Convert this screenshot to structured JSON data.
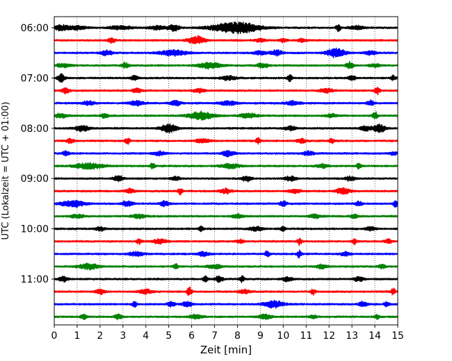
{
  "chart_data": {
    "type": "line",
    "title": "",
    "xlabel": "Zeit  [min]",
    "ylabel": "UTC (Lokalzeit = UTC + 01:00)",
    "xlim": [
      0,
      15
    ],
    "x_ticks": [
      0,
      1,
      2,
      3,
      4,
      5,
      6,
      7,
      8,
      9,
      10,
      11,
      12,
      13,
      14,
      15
    ],
    "x_tick_labels": [
      "0",
      "1",
      "2",
      "3",
      "4",
      "5",
      "6",
      "7",
      "8",
      "9",
      "10",
      "11",
      "12",
      "13",
      "14",
      "15"
    ],
    "y_tick_labels": [
      "06:00",
      "07:00",
      "08:00",
      "09:00",
      "10:00",
      "11:00"
    ],
    "grid": "vertical dotted at each minute",
    "trace_colors": [
      "#000000",
      "#ff0000",
      "#0000ff",
      "#008000"
    ],
    "traces": [
      {
        "time": "06:00",
        "events": [
          [
            0.3,
            0.6,
            1.2
          ],
          [
            1.0,
            0.8,
            0.8
          ],
          [
            2.9,
            1.0,
            0.8
          ],
          [
            4.5,
            0.6,
            1
          ],
          [
            5.2,
            0.5,
            1.4
          ],
          [
            7.5,
            1.6,
            1.4
          ],
          [
            8.3,
            1.5,
            1.7
          ],
          [
            12.4,
            0.2,
            1.6
          ],
          [
            13.2,
            0.6,
            1
          ]
        ]
      },
      {
        "time": "06:15",
        "events": [
          [
            2.5,
            0.3,
            1.1
          ],
          [
            6.2,
            0.7,
            1.8
          ],
          [
            9.0,
            0.4,
            0.8
          ],
          [
            10.0,
            0.3,
            0.8
          ],
          [
            10.8,
            0.4,
            0.7
          ]
        ]
      },
      {
        "time": "06:30",
        "events": [
          [
            2.3,
            0.5,
            1.2
          ],
          [
            5.2,
            1.2,
            1.2
          ],
          [
            9.0,
            0.6,
            0.8
          ],
          [
            9.7,
            0.5,
            1.3
          ],
          [
            12.3,
            0.8,
            2
          ],
          [
            13.8,
            0.5,
            0.8
          ]
        ]
      },
      {
        "time": "06:45",
        "events": [
          [
            0.4,
            0.6,
            0.8
          ],
          [
            3.1,
            0.3,
            1.2
          ],
          [
            6.8,
            1.0,
            1.3
          ],
          [
            9.1,
            0.5,
            0.9
          ],
          [
            12.9,
            0.3,
            1.7
          ],
          [
            14.0,
            0.4,
            0.8
          ]
        ]
      },
      {
        "time": "07:00",
        "events": [
          [
            0.3,
            0.3,
            1.8
          ],
          [
            3.5,
            0.3,
            1
          ],
          [
            7.6,
            0.6,
            1
          ],
          [
            10.3,
            0.2,
            1.6
          ],
          [
            13.0,
            0.3,
            1.2
          ],
          [
            14.8,
            0.2,
            1.1
          ]
        ]
      },
      {
        "time": "07:15",
        "events": [
          [
            0.5,
            0.3,
            1.2
          ],
          [
            3.6,
            0.4,
            1
          ],
          [
            6.3,
            0.5,
            0.9
          ],
          [
            11.9,
            0.6,
            0.9
          ],
          [
            14.1,
            0.2,
            1.8
          ]
        ]
      },
      {
        "time": "07:30",
        "events": [
          [
            1.5,
            0.5,
            0.9
          ],
          [
            3.6,
            0.6,
            1
          ],
          [
            5.3,
            0.5,
            1
          ],
          [
            7.6,
            0.8,
            0.9
          ],
          [
            10.4,
            0.6,
            0.9
          ],
          [
            13.8,
            0.3,
            1.2
          ]
        ]
      },
      {
        "time": "07:45",
        "events": [
          [
            0.3,
            0.5,
            1
          ],
          [
            2.2,
            0.3,
            1.2
          ],
          [
            6.4,
            1.1,
            1.8
          ],
          [
            8.5,
            0.8,
            1
          ],
          [
            12.1,
            0.5,
            0.8
          ],
          [
            14.0,
            0.2,
            2
          ]
        ]
      },
      {
        "time": "08:00",
        "events": [
          [
            1.2,
            0.6,
            1.3
          ],
          [
            5.0,
            0.7,
            1.8
          ],
          [
            10.3,
            0.5,
            0.9
          ],
          [
            13.6,
            0.5,
            1
          ],
          [
            14.2,
            0.5,
            1.8
          ]
        ]
      },
      {
        "time": "08:15",
        "events": [
          [
            0.7,
            0.3,
            1
          ],
          [
            3.2,
            0.2,
            1.4
          ],
          [
            6.5,
            0.6,
            0.9
          ],
          [
            8.9,
            0.2,
            1.3
          ],
          [
            10.8,
            0.4,
            0.9
          ],
          [
            12.1,
            0.2,
            1.2
          ]
        ]
      },
      {
        "time": "08:30",
        "events": [
          [
            0.5,
            0.3,
            1
          ],
          [
            4.6,
            0.5,
            1
          ],
          [
            7.6,
            0.5,
            1.3
          ],
          [
            11.1,
            0.5,
            0.9
          ],
          [
            14.8,
            0.3,
            0.8
          ]
        ]
      },
      {
        "time": "08:45",
        "events": [
          [
            1.5,
            1.2,
            1.3
          ],
          [
            4.3,
            0.2,
            1.4
          ],
          [
            7.7,
            0.8,
            1
          ],
          [
            11.7,
            0.5,
            0.9
          ],
          [
            13.3,
            0.2,
            1.3
          ]
        ]
      },
      {
        "time": "09:00",
        "events": [
          [
            2.8,
            0.4,
            1.4
          ],
          [
            5.3,
            0.4,
            0.9
          ],
          [
            8.4,
            0.4,
            1.2
          ],
          [
            10.3,
            0.5,
            1
          ],
          [
            12.9,
            0.5,
            0.9
          ]
        ]
      },
      {
        "time": "09:15",
        "events": [
          [
            3.3,
            0.4,
            1
          ],
          [
            5.5,
            0.2,
            1.4
          ],
          [
            7.5,
            0.5,
            1
          ],
          [
            10.5,
            0.5,
            0.9
          ],
          [
            12.6,
            0.6,
            1.3
          ]
        ]
      },
      {
        "time": "09:30",
        "events": [
          [
            0.8,
            1.0,
            1.4
          ],
          [
            3.2,
            0.5,
            1.2
          ],
          [
            4.8,
            0.4,
            1.2
          ],
          [
            10.0,
            0.3,
            1.2
          ],
          [
            13.3,
            0.3,
            0.9
          ],
          [
            14.9,
            0.2,
            1.4
          ]
        ]
      },
      {
        "time": "09:45",
        "events": [
          [
            1.0,
            0.5,
            0.9
          ],
          [
            3.7,
            0.6,
            0.9
          ],
          [
            8.0,
            0.5,
            0.9
          ],
          [
            11.4,
            0.5,
            0.9
          ],
          [
            13.1,
            0.3,
            0.8
          ]
        ]
      },
      {
        "time": "10:00",
        "events": [
          [
            2.0,
            0.4,
            0.9
          ],
          [
            6.4,
            0.2,
            1.2
          ],
          [
            8.8,
            0.6,
            0.9
          ],
          [
            10.0,
            0.2,
            1.2
          ],
          [
            13.8,
            0.4,
            0.9
          ]
        ]
      },
      {
        "time": "10:15",
        "events": [
          [
            3.7,
            0.2,
            1.2
          ],
          [
            4.6,
            0.6,
            1
          ],
          [
            8.1,
            0.3,
            0.8
          ],
          [
            10.7,
            0.2,
            1.4
          ],
          [
            13.1,
            0.2,
            1.2
          ],
          [
            14.6,
            0.3,
            1
          ]
        ]
      },
      {
        "time": "10:30",
        "events": [
          [
            3.6,
            0.6,
            1
          ],
          [
            6.5,
            0.5,
            0.9
          ],
          [
            9.3,
            0.2,
            1.2
          ],
          [
            10.7,
            0.2,
            1.6
          ],
          [
            12.7,
            0.4,
            0.9
          ]
        ]
      },
      {
        "time": "10:45",
        "events": [
          [
            1.5,
            0.9,
            1.2
          ],
          [
            5.3,
            0.2,
            1.2
          ],
          [
            7.0,
            0.6,
            0.9
          ],
          [
            11.7,
            0.5,
            0.9
          ],
          [
            14.3,
            0.3,
            0.9
          ]
        ]
      },
      {
        "time": "11:00",
        "events": [
          [
            0.4,
            0.4,
            1.2
          ],
          [
            6.6,
            0.2,
            1.3
          ],
          [
            7.2,
            0.3,
            1.5
          ],
          [
            8.2,
            0.2,
            1.5
          ],
          [
            10.2,
            0.5,
            0.9
          ],
          [
            13.3,
            0.4,
            1
          ]
        ]
      },
      {
        "time": "11:15",
        "events": [
          [
            2.0,
            0.4,
            1.2
          ],
          [
            4.0,
            0.6,
            0.9
          ],
          [
            5.9,
            0.2,
            2
          ],
          [
            8.3,
            0.5,
            0.9
          ],
          [
            11.3,
            0.2,
            1.3
          ],
          [
            14.8,
            0.2,
            1.3
          ]
        ]
      },
      {
        "time": "11:30",
        "events": [
          [
            3.5,
            0.2,
            1.2
          ],
          [
            5.1,
            0.3,
            1.2
          ],
          [
            5.8,
            0.4,
            1.2
          ],
          [
            9.6,
            0.9,
            1.5
          ],
          [
            13.5,
            0.4,
            1.1
          ],
          [
            14.5,
            0.2,
            1.2
          ]
        ]
      },
      {
        "time": "11:45",
        "events": [
          [
            1.3,
            0.3,
            0.9
          ],
          [
            2.8,
            0.3,
            1.1
          ],
          [
            6.2,
            0.6,
            0.9
          ],
          [
            9.2,
            0.5,
            1
          ],
          [
            11.3,
            0.3,
            0.8
          ],
          [
            14.1,
            0.2,
            0.9
          ]
        ]
      }
    ]
  }
}
